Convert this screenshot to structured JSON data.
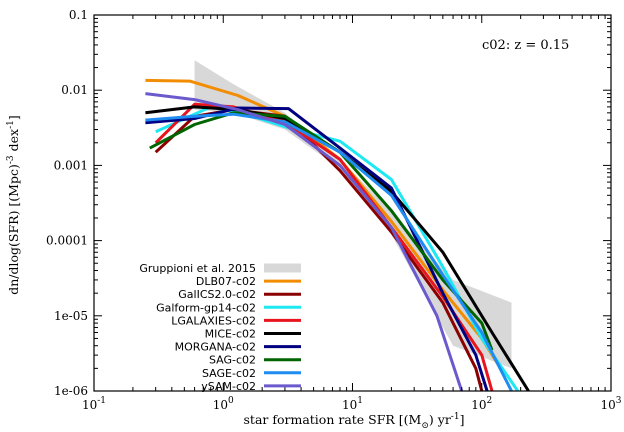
{
  "chart_data": {
    "type": "line",
    "annotation": "c02: z = 0.15",
    "xlabel_pre": "star formation rate SFR [(M",
    "xlabel_sub": "⊙",
    "xlabel_post": ") yr",
    "xlabel_sup": "-1",
    "xlabel_end": "]",
    "ylabel_pre": "dn/dlog(SFR) [(Mpc)",
    "ylabel_sup1": "-3",
    "ylabel_mid": " dex",
    "ylabel_sup2": "-1",
    "ylabel_end": "]",
    "xscale": "log",
    "yscale": "log",
    "xlim": [
      0.1,
      1000
    ],
    "ylim": [
      1e-06,
      0.1
    ],
    "xticks": [
      {
        "value": 0.1,
        "base": "10",
        "exp": "-1"
      },
      {
        "value": 1,
        "base": "10",
        "exp": "0"
      },
      {
        "value": 10,
        "base": "10",
        "exp": "1"
      },
      {
        "value": 100,
        "base": "10",
        "exp": "2"
      },
      {
        "value": 1000,
        "base": "10",
        "exp": "3"
      }
    ],
    "yticks": [
      {
        "value": 0.1,
        "label": "0.1"
      },
      {
        "value": 0.01,
        "label": "0.01"
      },
      {
        "value": 0.001,
        "label": "0.001"
      },
      {
        "value": 0.0001,
        "label": "0.0001"
      },
      {
        "value": 1e-05,
        "label": "1e-05"
      },
      {
        "value": 1e-06,
        "label": "1e-06"
      }
    ],
    "legend_position": "bottom-left",
    "observed_band": {
      "name": "Gruppioni et al. 2015",
      "color": "#d8d8d8",
      "upper": [
        [
          0.6,
          0.025
        ],
        [
          1.2,
          0.012
        ],
        [
          3.0,
          0.005
        ],
        [
          8.0,
          0.0012
        ],
        [
          20.0,
          0.00025
        ],
        [
          60.0,
          3e-05
        ],
        [
          170.0,
          1.5e-05
        ]
      ],
      "lower": [
        [
          0.6,
          0.0055
        ],
        [
          1.2,
          0.005
        ],
        [
          3.0,
          0.003
        ],
        [
          8.0,
          0.0009
        ],
        [
          20.0,
          0.00012
        ],
        [
          60.0,
          4e-06
        ],
        [
          170.0,
          2e-06
        ]
      ]
    },
    "series": [
      {
        "name": "DLB07-c02",
        "color": "#f28c00",
        "points": [
          [
            0.25,
            0.0135
          ],
          [
            0.55,
            0.0132
          ],
          [
            1.3,
            0.0085
          ],
          [
            3.0,
            0.0045
          ],
          [
            8.0,
            0.0012
          ],
          [
            20.0,
            0.00018
          ],
          [
            50.0,
            2.2e-05
          ],
          [
            100.0,
            5e-06
          ],
          [
            140.0,
            2e-06
          ]
        ]
      },
      {
        "name": "GalICS2.0-c02",
        "color": "#8b0000",
        "points": [
          [
            0.3,
            0.0015
          ],
          [
            0.6,
            0.0045
          ],
          [
            1.2,
            0.0055
          ],
          [
            3.0,
            0.0045
          ],
          [
            8.0,
            0.00085
          ],
          [
            20.0,
            0.00013
          ],
          [
            50.0,
            1.5e-05
          ],
          [
            90.0,
            2e-06
          ],
          [
            100.0,
            1e-06
          ]
        ]
      },
      {
        "name": "Galform-gp14-c02",
        "color": "#1ee8f2",
        "points": [
          [
            0.3,
            0.0028
          ],
          [
            0.8,
            0.006
          ],
          [
            1.5,
            0.0048
          ],
          [
            3.5,
            0.003
          ],
          [
            8.0,
            0.0021
          ],
          [
            20.0,
            0.00065
          ],
          [
            50.0,
            4.5e-05
          ],
          [
            100.0,
            5e-06
          ],
          [
            190.0,
            1e-06
          ]
        ]
      },
      {
        "name": "LGALAXIES-c02",
        "color": "#e8141e",
        "points": [
          [
            0.3,
            0.002
          ],
          [
            0.6,
            0.0065
          ],
          [
            1.2,
            0.006
          ],
          [
            3.0,
            0.0038
          ],
          [
            8.0,
            0.0012
          ],
          [
            20.0,
            0.00015
          ],
          [
            50.0,
            1.8e-05
          ],
          [
            100.0,
            3e-06
          ],
          [
            120.0,
            1e-06
          ]
        ]
      },
      {
        "name": "MICE-c02",
        "color": "#000000",
        "points": [
          [
            0.25,
            0.005
          ],
          [
            0.6,
            0.006
          ],
          [
            1.3,
            0.0055
          ],
          [
            3.0,
            0.0042
          ],
          [
            8.0,
            0.0015
          ],
          [
            20.0,
            0.00045
          ],
          [
            50.0,
            7e-05
          ],
          [
            120.0,
            6e-06
          ],
          [
            230.0,
            1e-06
          ]
        ]
      },
      {
        "name": "MORGANA-c02",
        "color": "#000080",
        "points": [
          [
            0.25,
            0.0037
          ],
          [
            0.6,
            0.0042
          ],
          [
            1.3,
            0.0058
          ],
          [
            3.2,
            0.0057
          ],
          [
            8.0,
            0.0017
          ],
          [
            20.0,
            0.0005
          ],
          [
            50.0,
            2e-05
          ],
          [
            90.0,
            3e-06
          ],
          [
            110.0,
            1e-06
          ]
        ]
      },
      {
        "name": "SAG-c02",
        "color": "#006400",
        "points": [
          [
            0.27,
            0.0017
          ],
          [
            0.6,
            0.0035
          ],
          [
            1.2,
            0.005
          ],
          [
            3.0,
            0.0045
          ],
          [
            8.0,
            0.0015
          ],
          [
            20.0,
            0.00025
          ],
          [
            50.0,
            3e-05
          ],
          [
            100.0,
            8e-06
          ],
          [
            120.0,
            3.5e-06
          ]
        ]
      },
      {
        "name": "SAGE-c02",
        "color": "#1e8cf0",
        "points": [
          [
            0.25,
            0.004
          ],
          [
            0.6,
            0.0045
          ],
          [
            1.2,
            0.0048
          ],
          [
            3.0,
            0.0038
          ],
          [
            8.0,
            0.0015
          ],
          [
            20.0,
            0.0004
          ],
          [
            50.0,
            3.5e-05
          ],
          [
            100.0,
            6e-06
          ],
          [
            170.0,
            1e-06
          ]
        ]
      },
      {
        "name": "ySAM-c02",
        "color": "#6a5acd",
        "points": [
          [
            0.25,
            0.009
          ],
          [
            0.6,
            0.0075
          ],
          [
            1.3,
            0.0055
          ],
          [
            3.0,
            0.0035
          ],
          [
            8.0,
            0.001
          ],
          [
            20.0,
            0.00015
          ],
          [
            45.0,
            1e-05
          ],
          [
            70.0,
            1e-06
          ]
        ]
      }
    ]
  }
}
